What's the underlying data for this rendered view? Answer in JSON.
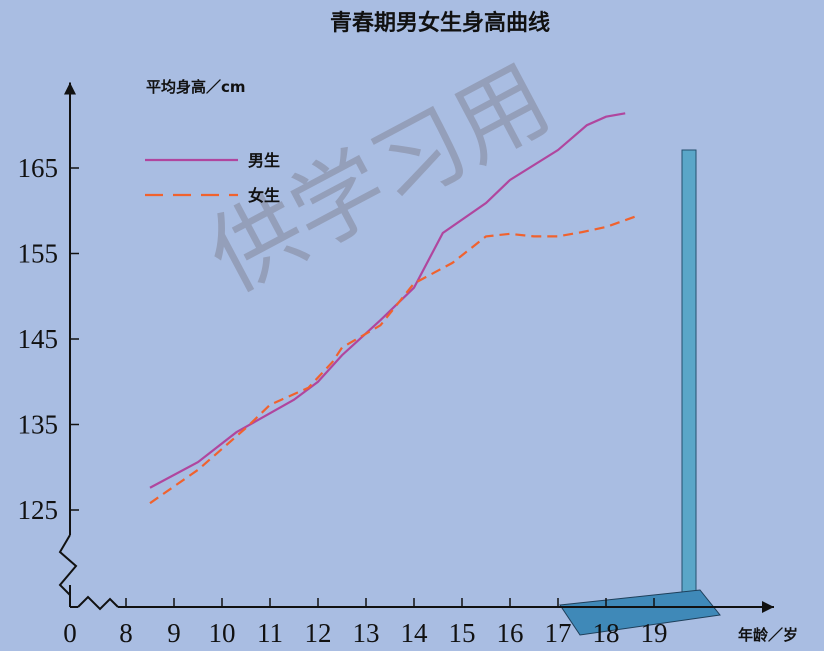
{
  "chart_data": {
    "type": "line",
    "title": "青春期男女生身高曲线",
    "y_label": "平均身高／cm",
    "x_label": "年龄／岁",
    "watermark": "供学习用",
    "xlim": [
      0,
      21.5
    ],
    "ylim": [
      114,
      175
    ],
    "xticks": [
      0,
      8,
      9,
      10,
      11,
      12,
      13,
      14,
      15,
      16,
      17,
      18,
      19
    ],
    "yticks": [
      125,
      135,
      145,
      155,
      165
    ],
    "axis_break": true,
    "legend": "top-left",
    "series": [
      {
        "name": "男生",
        "color": "#b0469e",
        "dash": false,
        "x": [
          8.5,
          9.5,
          10.3,
          11.5,
          12,
          12.5,
          13.3,
          14,
          14.6,
          15.5,
          16,
          17,
          17.6,
          18,
          18.4
        ],
        "values": [
          127.6,
          130.6,
          134.1,
          137.9,
          140,
          143.1,
          147.2,
          151,
          157.4,
          160.9,
          163.6,
          167.1,
          170,
          171,
          171.4
        ]
      },
      {
        "name": "女生",
        "color": "#f0622e",
        "dash": true,
        "x": [
          8.5,
          9.5,
          10.5,
          11,
          11.8,
          12.3,
          12.5,
          13.3,
          14,
          14.8,
          15.5,
          16,
          16.5,
          17,
          17.5,
          18,
          18.6
        ],
        "values": [
          125.8,
          129.7,
          134.6,
          137.3,
          139.3,
          142.3,
          144,
          146.6,
          151.5,
          153.9,
          157,
          157.3,
          157,
          157,
          157.5,
          158.1,
          159.3
        ]
      }
    ]
  }
}
